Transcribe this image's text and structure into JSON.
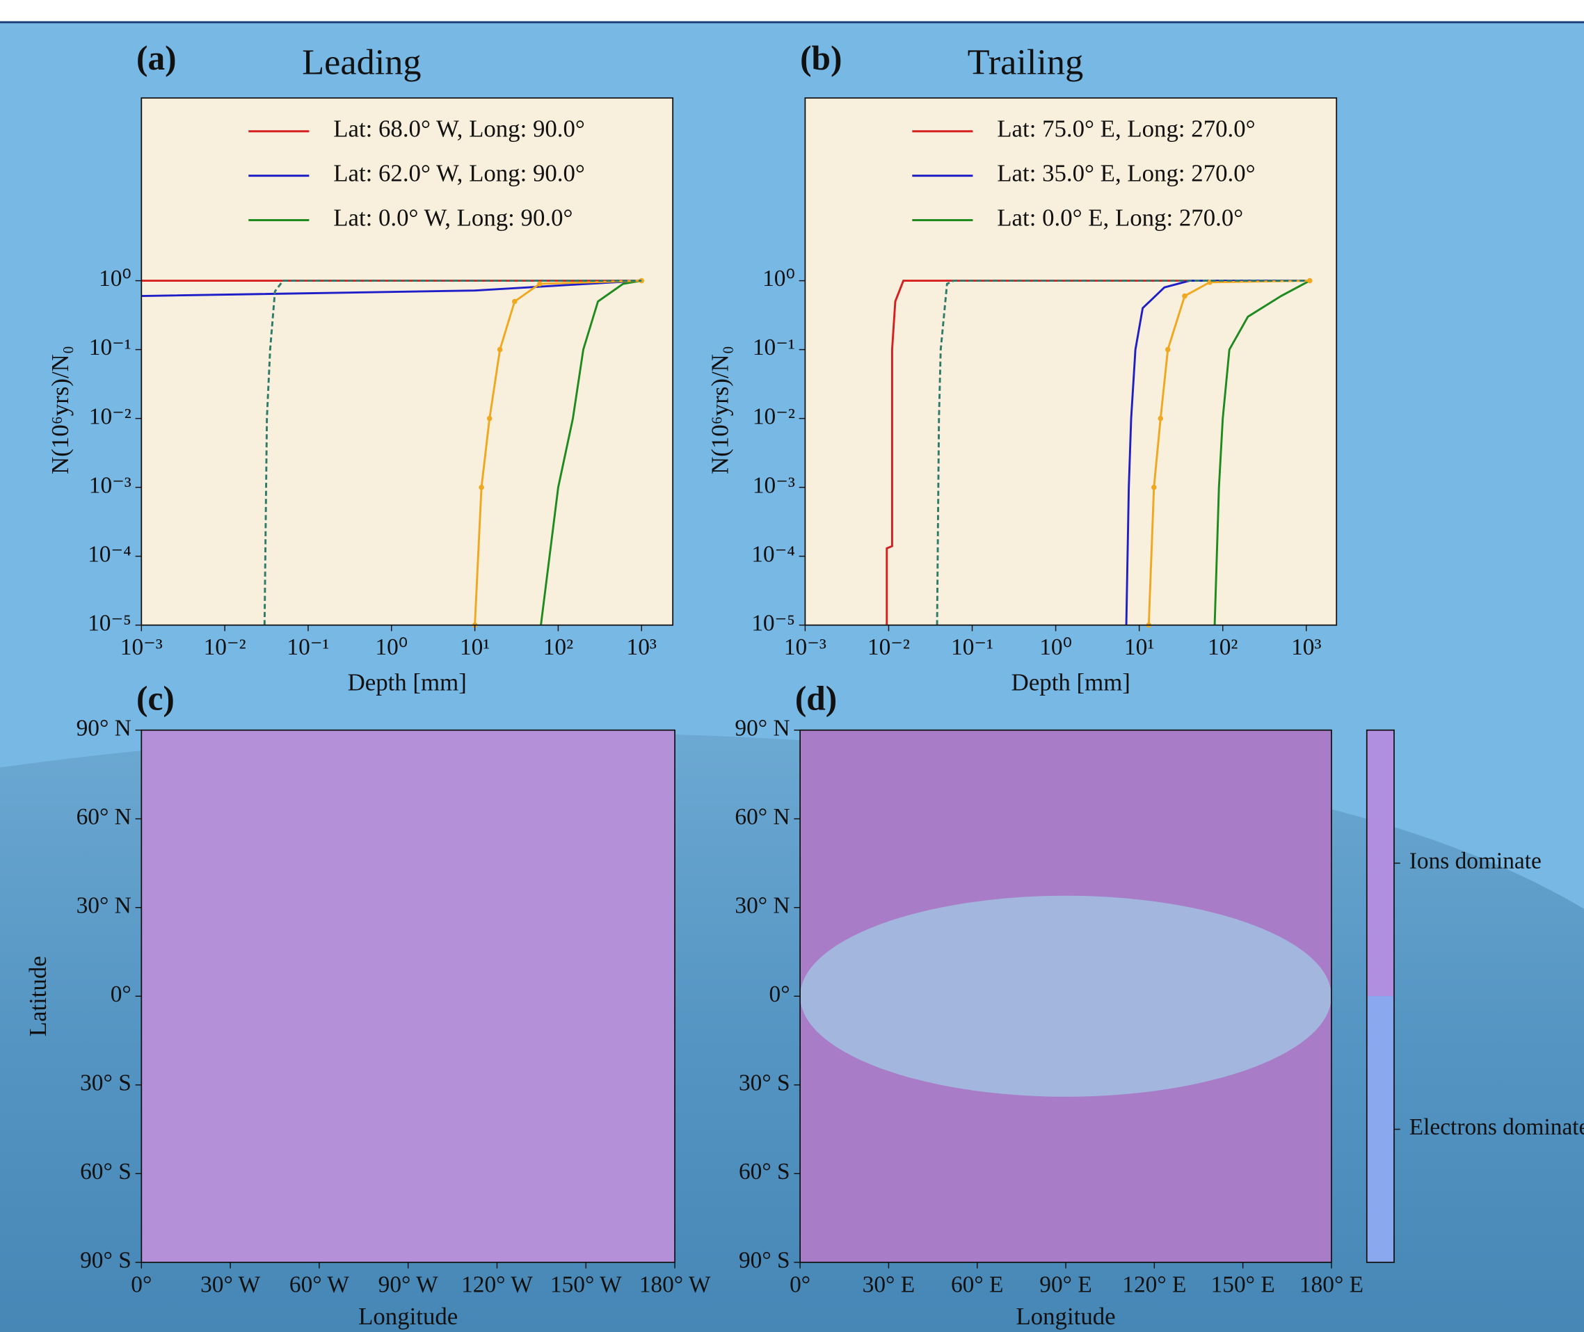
{
  "chart_data": [
    {
      "type": "line",
      "panel": "(a)",
      "title": "Leading",
      "xlabel": "Depth [mm]",
      "ylabel": "N(10⁶yrs)/N₀",
      "xlog": true,
      "ylog": true,
      "xlim": [
        0.001,
        2370
      ],
      "ylim": [
        1e-05,
        450
      ],
      "xticks": [
        {
          "value": 0.001,
          "label": "10⁻³"
        },
        {
          "value": 0.01,
          "label": "10⁻²"
        },
        {
          "value": 0.1,
          "label": "10⁻¹"
        },
        {
          "value": 1,
          "label": "10⁰"
        },
        {
          "value": 10,
          "label": "10¹"
        },
        {
          "value": 100,
          "label": "10²"
        },
        {
          "value": 1000,
          "label": "10³"
        }
      ],
      "yticks": [
        {
          "value": 1e-05,
          "label": "10⁻⁵"
        },
        {
          "value": 0.0001,
          "label": "10⁻⁴"
        },
        {
          "value": 0.001,
          "label": "10⁻³"
        },
        {
          "value": 0.01,
          "label": "10⁻²"
        },
        {
          "value": 0.1,
          "label": "10⁻¹"
        },
        {
          "value": 1,
          "label": "10⁰"
        }
      ],
      "legend": "upper right",
      "series": [
        {
          "name": "Lat: 68.0° W, Long: 90.0°",
          "color": "#d62020",
          "x": [
            0.001,
            1000
          ],
          "values": [
            1,
            1
          ]
        },
        {
          "name": "Lat: 62.0° W, Long: 90.0°",
          "color": "#1f1fc8",
          "x": [
            0.001,
            10,
            100,
            1000
          ],
          "values": [
            0.6,
            0.72,
            0.85,
            1
          ]
        },
        {
          "name": "Lat: 0.0° W, Long: 90.0°",
          "color": "#1f8a1f",
          "x": [
            62,
            100,
            150,
            200,
            300,
            600,
            1000
          ],
          "values": [
            1e-05,
            0.001,
            0.01,
            0.1,
            0.5,
            0.9,
            1
          ]
        },
        {
          "color": "#f0a820",
          "marker": "dot",
          "x": [
            10,
            12,
            15,
            20,
            30,
            60,
            1000
          ],
          "values": [
            1e-05,
            0.001,
            0.01,
            0.1,
            0.5,
            0.9,
            1
          ]
        },
        {
          "color": "#2f7a6a",
          "dash": true,
          "x": [
            0.03,
            0.032,
            0.035,
            0.04,
            0.05,
            1000
          ],
          "values": [
            1e-05,
            0.01,
            0.1,
            0.7,
            1,
            1
          ]
        }
      ]
    },
    {
      "type": "line",
      "panel": "(b)",
      "title": "Trailing",
      "xlabel": "Depth [mm]",
      "ylabel": "N(10⁶yrs)/N₀",
      "xlog": true,
      "ylog": true,
      "xlim": [
        0.001,
        2300
      ],
      "ylim": [
        1e-05,
        450
      ],
      "xticks": [
        {
          "value": 0.001,
          "label": "10⁻³"
        },
        {
          "value": 0.01,
          "label": "10⁻²"
        },
        {
          "value": 0.1,
          "label": "10⁻¹"
        },
        {
          "value": 1,
          "label": "10⁰"
        },
        {
          "value": 10,
          "label": "10¹"
        },
        {
          "value": 100,
          "label": "10²"
        },
        {
          "value": 1000,
          "label": "10³"
        }
      ],
      "yticks": [
        {
          "value": 1e-05,
          "label": "10⁻⁵"
        },
        {
          "value": 0.0001,
          "label": "10⁻⁴"
        },
        {
          "value": 0.001,
          "label": "10⁻³"
        },
        {
          "value": 0.01,
          "label": "10⁻²"
        },
        {
          "value": 0.1,
          "label": "10⁻¹"
        },
        {
          "value": 1,
          "label": "10⁰"
        }
      ],
      "legend": "upper right",
      "series": [
        {
          "name": "Lat: 75.0° E, Long: 270.0°",
          "color": "#d62020",
          "x": [
            0.0095,
            0.0095,
            0.011,
            0.011,
            0.012,
            0.015,
            1000
          ],
          "values": [
            1e-05,
            0.00013,
            0.00014,
            0.1,
            0.5,
            1,
            1
          ]
        },
        {
          "name": "Lat: 35.0° E, Long: 270.0°",
          "color": "#1f1fc8",
          "x": [
            7,
            7.5,
            8,
            9,
            11,
            20,
            40,
            1000
          ],
          "values": [
            1e-05,
            0.001,
            0.01,
            0.1,
            0.4,
            0.8,
            1,
            1
          ]
        },
        {
          "name": "Lat: 0.0° E, Long: 270.0°",
          "color": "#1f8a1f",
          "x": [
            80,
            90,
            100,
            120,
            200,
            500,
            1100
          ],
          "values": [
            1e-05,
            0.001,
            0.01,
            0.1,
            0.3,
            0.6,
            1
          ]
        },
        {
          "color": "#f0a820",
          "marker": "dot",
          "x": [
            13,
            15,
            18,
            22,
            35,
            70,
            1100
          ],
          "values": [
            1e-05,
            0.001,
            0.01,
            0.1,
            0.6,
            0.95,
            1
          ]
        },
        {
          "color": "#2f7a6a",
          "dash": true,
          "x": [
            0.038,
            0.04,
            0.042,
            0.05,
            0.06,
            1000
          ],
          "values": [
            1e-05,
            0.01,
            0.1,
            0.9,
            1,
            1
          ]
        }
      ]
    },
    {
      "type": "map",
      "panel": "(c)",
      "xlabel": "Longitude",
      "ylabel": "Latitude",
      "xlim": [
        0,
        180
      ],
      "ylim": [
        -90,
        90
      ],
      "color": "#b390d8",
      "xticks": [
        {
          "value": 0,
          "label": "0°"
        },
        {
          "value": 30,
          "label": "30° W"
        },
        {
          "value": 60,
          "label": "60° W"
        },
        {
          "value": 90,
          "label": "90° W"
        },
        {
          "value": 120,
          "label": "120° W"
        },
        {
          "value": 150,
          "label": "150° W"
        },
        {
          "value": 180,
          "label": "180° W"
        }
      ],
      "yticks": [
        {
          "value": 90,
          "label": "90° N"
        },
        {
          "value": 60,
          "label": "60° N"
        },
        {
          "value": 30,
          "label": "30° N"
        },
        {
          "value": 0,
          "label": "0°"
        },
        {
          "value": -30,
          "label": "30° S"
        },
        {
          "value": -60,
          "label": "60° S"
        },
        {
          "value": -90,
          "label": "90° S"
        }
      ],
      "regions": []
    },
    {
      "type": "map",
      "panel": "(d)",
      "xlabel": "Longitude",
      "xlim": [
        0,
        180
      ],
      "ylim": [
        -90,
        90
      ],
      "color": "#a87cc6",
      "xticks": [
        {
          "value": 0,
          "label": "0°"
        },
        {
          "value": 30,
          "label": "30° E"
        },
        {
          "value": 60,
          "label": "60° E"
        },
        {
          "value": 90,
          "label": "90° E"
        },
        {
          "value": 120,
          "label": "120° E"
        },
        {
          "value": 150,
          "label": "150° E"
        },
        {
          "value": 180,
          "label": "180° E"
        }
      ],
      "yticks": [
        {
          "value": 90,
          "label": "90° N"
        },
        {
          "value": 60,
          "label": "60° N"
        },
        {
          "value": 30,
          "label": "30° N"
        },
        {
          "value": 0,
          "label": "0°"
        },
        {
          "value": -30,
          "label": "30° S"
        },
        {
          "value": -60,
          "label": "60° S"
        },
        {
          "value": -90,
          "label": "90° S"
        }
      ],
      "regions": [
        {
          "color": "#a3b6de",
          "center": [
            90,
            0
          ],
          "radii": [
            90,
            34
          ]
        }
      ],
      "colorbar": {
        "labels": [
          "Ions dominate",
          "Electrons dominate"
        ],
        "colors": [
          "#b08ee0",
          "#8aa8ee"
        ]
      }
    }
  ]
}
